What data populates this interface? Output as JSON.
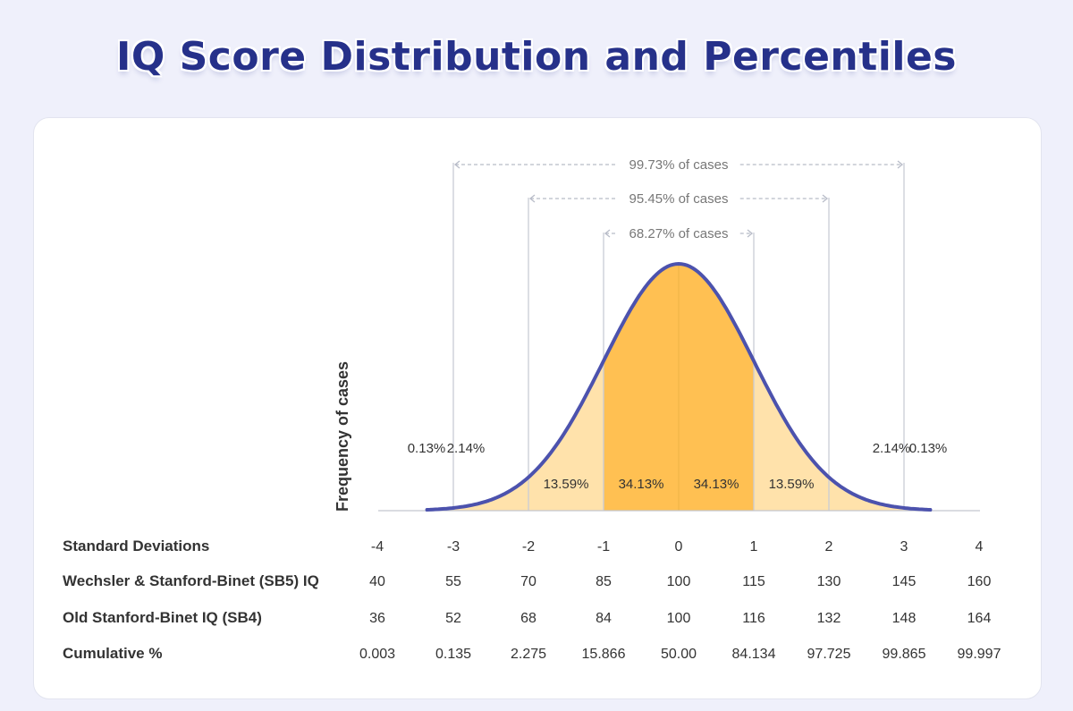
{
  "title": "IQ Score Distribution and Percentiles",
  "colors": {
    "curve": "#4c52ad",
    "fill_outer": "#ffe2ab",
    "fill_inner": "#ffc052",
    "guide": "#c9ccd6",
    "text": "#333333",
    "muted": "#777777",
    "title": "#26318a"
  },
  "chart_data": {
    "type": "area",
    "title": "IQ Score Distribution and Percentiles",
    "ylabel": "Frequency of cases",
    "xlim": [
      -4,
      4
    ],
    "standard_deviations": [
      "-4",
      "-3",
      "-2",
      "-1",
      "0",
      "1",
      "2",
      "3",
      "4"
    ],
    "sd_values": [
      -4,
      -3,
      -2,
      -1,
      0,
      1,
      2,
      3,
      4
    ],
    "curve_sd_range": [
      -3.35,
      3.35
    ],
    "segments": [
      {
        "label": "0.13%",
        "at_sd": -3.5
      },
      {
        "label": "2.14%",
        "at_sd": -2.5
      },
      {
        "label": "13.59%",
        "at_sd": -1.5
      },
      {
        "label": "34.13%",
        "at_sd": -0.5
      },
      {
        "label": "34.13%",
        "at_sd": 0.5
      },
      {
        "label": "13.59%",
        "at_sd": 1.5
      },
      {
        "label": "2.14%",
        "at_sd": 2.5
      },
      {
        "label": "0.13%",
        "at_sd": 3.5
      }
    ],
    "ranges": [
      {
        "label": "99.73% of cases",
        "from_sd": -3,
        "to_sd": 3
      },
      {
        "label": "95.45% of cases",
        "from_sd": -2,
        "to_sd": 2
      },
      {
        "label": "68.27% of cases",
        "from_sd": -1,
        "to_sd": 1
      }
    ],
    "rows": [
      {
        "label": "Standard Deviations",
        "values": [
          "-4",
          "-3",
          "-2",
          "-1",
          "0",
          "1",
          "2",
          "3",
          "4"
        ]
      },
      {
        "label": "Wechsler & Stanford-Binet (SB5) IQ",
        "values": [
          "40",
          "55",
          "70",
          "85",
          "100",
          "115",
          "130",
          "145",
          "160"
        ]
      },
      {
        "label": "Old Stanford-Binet IQ (SB4)",
        "values": [
          "36",
          "52",
          "68",
          "84",
          "100",
          "116",
          "132",
          "148",
          "164"
        ]
      },
      {
        "label": "Cumulative %",
        "values": [
          "0.003",
          "0.135",
          "2.275",
          "15.866",
          "50.00",
          "84.134",
          "97.725",
          "99.865",
          "99.997"
        ]
      }
    ]
  }
}
